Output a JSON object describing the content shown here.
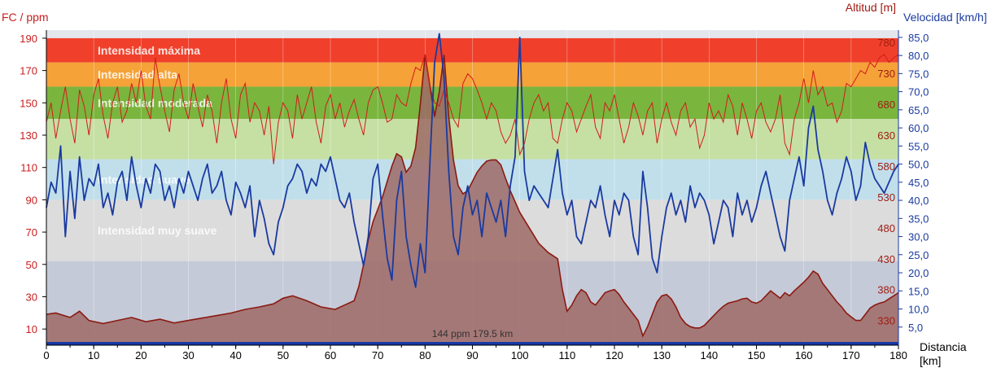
{
  "chart_data": {
    "type": "area",
    "title": "",
    "xlabel": "Distancia [km]",
    "ylabel_left": "FC / ppm",
    "ylabel_right_outer": "Velocidad [km/h]",
    "ylabel_right_inner": "Altitud [m]",
    "xlim": [
      0,
      180
    ],
    "ylim_hr": [
      0,
      195
    ],
    "ylim_speed": [
      0,
      87
    ],
    "ylim_alt": [
      290,
      800
    ],
    "x_ticks": [
      "0",
      "10",
      "20",
      "30",
      "40",
      "50",
      "60",
      "70",
      "80",
      "90",
      "100",
      "110",
      "120",
      "130",
      "140",
      "150",
      "160",
      "170",
      "180"
    ],
    "hr_ticks": [
      "10",
      "30",
      "50",
      "70",
      "90",
      "110",
      "130",
      "150",
      "170",
      "190"
    ],
    "alt_ticks": [
      "330",
      "380",
      "430",
      "480",
      "530",
      "580",
      "630",
      "680",
      "730",
      "780"
    ],
    "speed_ticks": [
      "5,0",
      "10,0",
      "15,0",
      "20,0",
      "25,0",
      "30,0",
      "35,0",
      "40,0",
      "45,0",
      "50,0",
      "55,0",
      "60,0",
      "65,0",
      "70,0",
      "75,0",
      "80,0",
      "85,0"
    ],
    "zones": [
      {
        "name": "Intensidad máxima",
        "from": 175,
        "to": 190,
        "color": "#f0402b"
      },
      {
        "name": "Intensidad alta",
        "from": 160,
        "to": 175,
        "color": "#f5a238"
      },
      {
        "name": "Intensidad moderada",
        "from": 140,
        "to": 160,
        "color": "#7ab53e"
      },
      {
        "name": "",
        "from": 115,
        "to": 140,
        "color": "#c6e0a4"
      },
      {
        "name": "Intensidad suave",
        "from": 90,
        "to": 115,
        "color": "#c1dfeb"
      },
      {
        "name": "Intensidad muy suave",
        "from": 52,
        "to": 90,
        "color": "#dcdcdc"
      },
      {
        "name": "",
        "from": 2,
        "to": 52,
        "color": "#c5cad8"
      }
    ],
    "summary_bar": {
      "label": "144 ppm 179.5 km",
      "color": "#1538a6"
    },
    "series": [
      {
        "name": "Altitud",
        "color": "#8b1a12",
        "x": [
          0,
          2,
          5,
          7,
          9,
          12,
          15,
          18,
          21,
          24,
          27,
          30,
          33,
          36,
          39,
          42,
          45,
          48,
          50,
          52,
          55,
          58,
          61,
          63,
          65,
          66,
          67,
          68,
          69,
          70,
          71,
          72,
          73,
          74,
          75,
          76,
          77,
          78,
          79,
          80,
          81,
          82,
          83,
          84,
          85,
          86,
          87,
          88,
          89,
          90,
          91,
          92,
          93,
          94,
          95,
          96,
          97,
          98,
          100,
          102,
          104,
          106,
          108,
          109,
          110,
          111,
          112,
          113,
          114,
          115,
          116,
          117,
          118,
          119,
          120,
          121,
          122,
          123,
          124,
          125,
          126,
          127,
          128,
          129,
          130,
          131,
          132,
          133,
          134,
          135,
          136,
          137,
          138,
          139,
          140,
          141,
          142,
          143,
          144,
          145,
          146,
          147,
          148,
          149,
          150,
          151,
          152,
          153,
          154,
          155,
          156,
          157,
          158,
          159,
          160,
          161,
          162,
          163,
          164,
          165,
          166,
          167,
          168,
          169,
          170,
          171,
          172,
          173,
          174,
          175,
          176,
          177,
          178,
          179,
          180
        ],
        "values": [
          340,
          342,
          335,
          345,
          330,
          325,
          330,
          335,
          328,
          332,
          326,
          330,
          334,
          338,
          342,
          348,
          352,
          357,
          366,
          370,
          362,
          352,
          348,
          355,
          362,
          385,
          420,
          460,
          490,
          510,
          530,
          555,
          580,
          600,
          595,
          570,
          580,
          610,
          680,
          760,
          710,
          660,
          700,
          760,
          660,
          590,
          548,
          535,
          540,
          555,
          570,
          580,
          588,
          590,
          590,
          582,
          560,
          540,
          505,
          480,
          455,
          440,
          430,
          380,
          345,
          355,
          370,
          380,
          375,
          360,
          355,
          365,
          375,
          378,
          380,
          372,
          360,
          350,
          340,
          330,
          305,
          320,
          340,
          360,
          370,
          372,
          365,
          352,
          335,
          325,
          320,
          318,
          318,
          322,
          330,
          338,
          346,
          353,
          358,
          360,
          362,
          365,
          366,
          360,
          358,
          362,
          370,
          378,
          372,
          366,
          375,
          370,
          378,
          385,
          392,
          400,
          410,
          405,
          390,
          380,
          370,
          360,
          352,
          342,
          336,
          330,
          330,
          340,
          350,
          355,
          358,
          360,
          365,
          370,
          375
        ]
      },
      {
        "name": "FC",
        "color": "#d21b1b",
        "x": [
          0,
          1,
          2,
          3,
          4,
          5,
          6,
          7,
          8,
          9,
          10,
          11,
          12,
          13,
          14,
          15,
          16,
          17,
          18,
          19,
          20,
          21,
          22,
          23,
          24,
          25,
          26,
          27,
          28,
          29,
          30,
          31,
          32,
          33,
          34,
          35,
          36,
          37,
          38,
          39,
          40,
          41,
          42,
          43,
          44,
          45,
          46,
          47,
          48,
          49,
          50,
          51,
          52,
          53,
          54,
          55,
          56,
          57,
          58,
          59,
          60,
          61,
          62,
          63,
          64,
          65,
          66,
          67,
          68,
          69,
          70,
          71,
          72,
          73,
          74,
          75,
          76,
          77,
          78,
          79,
          80,
          81,
          82,
          83,
          84,
          85,
          86,
          87,
          88,
          89,
          90,
          91,
          92,
          93,
          94,
          95,
          96,
          97,
          98,
          99,
          100,
          101,
          102,
          103,
          104,
          105,
          106,
          107,
          108,
          109,
          110,
          111,
          112,
          113,
          114,
          115,
          116,
          117,
          118,
          119,
          120,
          121,
          122,
          123,
          124,
          125,
          126,
          127,
          128,
          129,
          130,
          131,
          132,
          133,
          134,
          135,
          136,
          137,
          138,
          139,
          140,
          141,
          142,
          143,
          144,
          145,
          146,
          147,
          148,
          149,
          150,
          151,
          152,
          153,
          154,
          155,
          156,
          157,
          158,
          159,
          160,
          161,
          162,
          163,
          164,
          165,
          166,
          167,
          168,
          169,
          170,
          171,
          172,
          173,
          174,
          175,
          176,
          177,
          178,
          179,
          180
        ],
        "values": [
          138,
          150,
          128,
          145,
          160,
          140,
          125,
          158,
          148,
          130,
          155,
          165,
          142,
          128,
          150,
          160,
          138,
          145,
          162,
          150,
          170,
          148,
          140,
          178,
          160,
          145,
          132,
          158,
          168,
          150,
          140,
          162,
          148,
          135,
          155,
          145,
          125,
          150,
          165,
          140,
          128,
          155,
          162,
          138,
          150,
          145,
          130,
          148,
          112,
          138,
          150,
          145,
          128,
          155,
          140,
          150,
          160,
          138,
          125,
          148,
          155,
          140,
          150,
          135,
          145,
          152,
          140,
          130,
          150,
          158,
          160,
          150,
          138,
          140,
          155,
          150,
          148,
          162,
          172,
          170,
          180,
          160,
          150,
          148,
          158,
          150,
          140,
          135,
          162,
          168,
          165,
          158,
          150,
          140,
          150,
          145,
          132,
          125,
          130,
          140,
          118,
          125,
          140,
          150,
          155,
          145,
          150,
          128,
          125,
          140,
          150,
          145,
          132,
          140,
          148,
          155,
          135,
          128,
          150,
          145,
          155,
          140,
          125,
          135,
          150,
          142,
          130,
          145,
          150,
          125,
          140,
          150,
          138,
          130,
          145,
          150,
          135,
          140,
          122,
          130,
          150,
          140,
          145,
          138,
          155,
          148,
          130,
          150,
          140,
          128,
          145,
          150,
          138,
          132,
          140,
          155,
          125,
          118,
          140,
          150,
          165,
          150,
          170,
          155,
          160,
          148,
          150,
          138,
          145,
          162,
          160,
          165,
          170,
          168,
          175,
          172,
          178,
          180,
          175,
          178,
          180
        ]
      },
      {
        "name": "Velocidad",
        "color": "#1a3aa0",
        "x": [
          0,
          1,
          2,
          3,
          4,
          5,
          6,
          7,
          8,
          9,
          10,
          11,
          12,
          13,
          14,
          15,
          16,
          17,
          18,
          19,
          20,
          21,
          22,
          23,
          24,
          25,
          26,
          27,
          28,
          29,
          30,
          31,
          32,
          33,
          34,
          35,
          36,
          37,
          38,
          39,
          40,
          41,
          42,
          43,
          44,
          45,
          46,
          47,
          48,
          49,
          50,
          51,
          52,
          53,
          54,
          55,
          56,
          57,
          58,
          59,
          60,
          61,
          62,
          63,
          64,
          65,
          66,
          67,
          68,
          69,
          70,
          71,
          72,
          73,
          74,
          75,
          76,
          77,
          78,
          79,
          80,
          81,
          82,
          83,
          84,
          85,
          86,
          87,
          88,
          89,
          90,
          91,
          92,
          93,
          94,
          95,
          96,
          97,
          98,
          99,
          100,
          101,
          102,
          103,
          104,
          105,
          106,
          107,
          108,
          109,
          110,
          111,
          112,
          113,
          114,
          115,
          116,
          117,
          118,
          119,
          120,
          121,
          122,
          123,
          124,
          125,
          126,
          127,
          128,
          129,
          130,
          131,
          132,
          133,
          134,
          135,
          136,
          137,
          138,
          139,
          140,
          141,
          142,
          143,
          144,
          145,
          146,
          147,
          148,
          149,
          150,
          151,
          152,
          153,
          154,
          155,
          156,
          157,
          158,
          159,
          160,
          161,
          162,
          163,
          164,
          165,
          166,
          167,
          168,
          169,
          170,
          171,
          172,
          173,
          174,
          175,
          176,
          177,
          178,
          179,
          180
        ],
        "values": [
          38,
          45,
          42,
          55,
          30,
          48,
          35,
          52,
          40,
          46,
          44,
          50,
          38,
          42,
          36,
          45,
          48,
          40,
          52,
          44,
          38,
          46,
          42,
          50,
          48,
          40,
          44,
          38,
          46,
          42,
          48,
          44,
          40,
          46,
          50,
          42,
          44,
          48,
          40,
          36,
          45,
          42,
          38,
          44,
          30,
          40,
          35,
          28,
          25,
          34,
          38,
          44,
          46,
          50,
          48,
          42,
          46,
          44,
          50,
          48,
          52,
          46,
          40,
          38,
          42,
          34,
          28,
          22,
          30,
          46,
          50,
          36,
          24,
          18,
          40,
          48,
          30,
          22,
          16,
          28,
          20,
          50,
          78,
          86,
          74,
          48,
          30,
          25,
          38,
          44,
          36,
          40,
          30,
          42,
          38,
          34,
          40,
          30,
          44,
          52,
          85,
          48,
          40,
          44,
          42,
          40,
          38,
          46,
          54,
          42,
          36,
          40,
          30,
          28,
          34,
          40,
          38,
          44,
          36,
          30,
          40,
          36,
          42,
          40,
          30,
          25,
          48,
          38,
          24,
          20,
          30,
          38,
          42,
          36,
          40,
          34,
          44,
          38,
          42,
          40,
          36,
          28,
          34,
          40,
          38,
          30,
          42,
          36,
          40,
          34,
          38,
          44,
          48,
          42,
          36,
          30,
          26,
          40,
          46,
          52,
          44,
          60,
          66,
          54,
          48,
          40,
          36,
          42,
          46,
          52,
          48,
          40,
          44,
          56,
          50,
          46,
          44,
          42,
          45,
          48,
          50
        ]
      }
    ]
  }
}
